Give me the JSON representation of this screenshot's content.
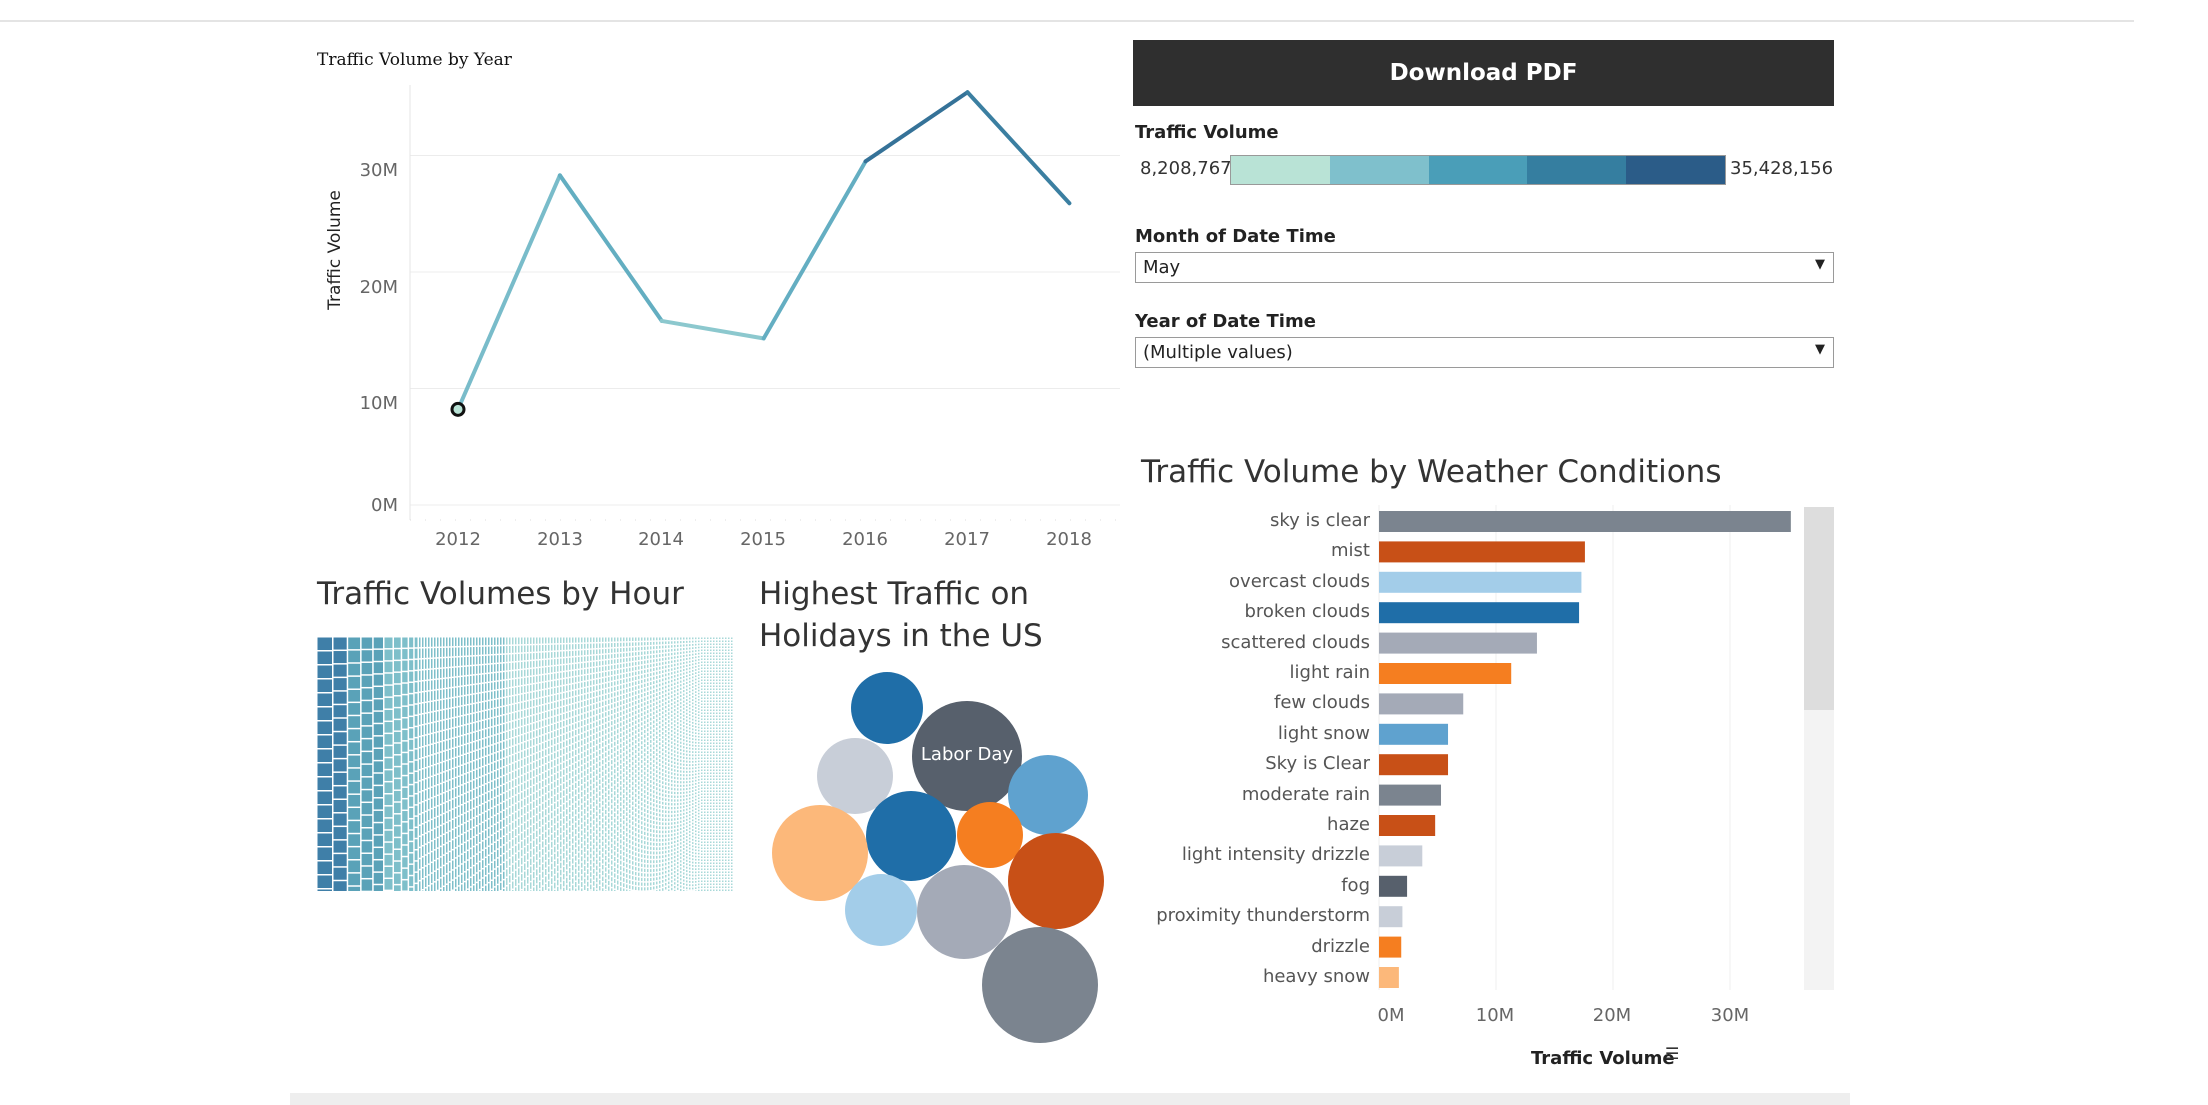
{
  "line_chart": {
    "title": "Traffic Volume by Year",
    "y_axis_label": "Traffic Volume",
    "y_ticks": [
      "30M",
      "20M",
      "10M",
      "0M"
    ],
    "x_ticks": [
      "2012",
      "2013",
      "2014",
      "2015",
      "2016",
      "2017",
      "2018"
    ]
  },
  "download": {
    "label": "Download PDF"
  },
  "color_legend": {
    "title": "Traffic Volume",
    "min_label": "8,208,767",
    "max_label": "35,428,156",
    "colors": [
      "#b9e3d6",
      "#7fc0cc",
      "#4a9eb8",
      "#357ea0",
      "#2b5c88"
    ]
  },
  "filters": {
    "month": {
      "label": "Month of Date Time",
      "value": "May"
    },
    "year": {
      "label": "Year of Date Time",
      "value": "(Multiple values)"
    }
  },
  "hourly": {
    "title": "Traffic Volumes by Hour"
  },
  "holidays": {
    "title_line1": "Highest Traffic on",
    "title_line2": "Holidays in the US",
    "bubble_label": "Labor Day"
  },
  "weather": {
    "title": "Traffic Volume by Weather Conditions",
    "x_ticks": [
      "0M",
      "10M",
      "20M",
      "30M"
    ],
    "x_axis_label": "Traffic Volume"
  },
  "chart_data": [
    {
      "type": "line",
      "title": "Traffic Volume by Year",
      "xlabel": "",
      "ylabel": "Traffic Volume",
      "x": [
        2012,
        2013,
        2014,
        2015,
        2016,
        2017,
        2018
      ],
      "values": [
        8208767,
        28300000,
        15800000,
        14300000,
        29500000,
        35428156,
        25900000
      ],
      "ylim": [
        0,
        35000000
      ],
      "grid": true
    },
    {
      "type": "bar",
      "orientation": "horizontal",
      "title": "Traffic Volume by Weather Conditions",
      "xlabel": "Traffic Volume",
      "ylabel": "",
      "xlim": [
        0,
        38000000
      ],
      "categories": [
        "sky is clear",
        "mist",
        "overcast clouds",
        "broken clouds",
        "scattered clouds",
        "light rain",
        "few clouds",
        "light snow",
        "Sky is Clear",
        "moderate rain",
        "haze",
        "light intensity drizzle",
        "fog",
        "proximity thunderstorm",
        "drizzle",
        "heavy snow"
      ],
      "values": [
        35200000,
        17600000,
        17300000,
        17100000,
        13500000,
        11300000,
        7200000,
        5900000,
        5900000,
        5300000,
        4800000,
        3700000,
        2400000,
        2000000,
        1900000,
        1700000
      ],
      "colors": [
        "#7b848f",
        "#c85017",
        "#a3cde9",
        "#1f6ea8",
        "#a4aab7",
        "#f57e20",
        "#a4aab7",
        "#5fa2cf",
        "#c85017",
        "#7b848f",
        "#c85017",
        "#c8ced8",
        "#57606c",
        "#c8ced8",
        "#f57e20",
        "#fcb87a"
      ],
      "grid": true
    }
  ]
}
